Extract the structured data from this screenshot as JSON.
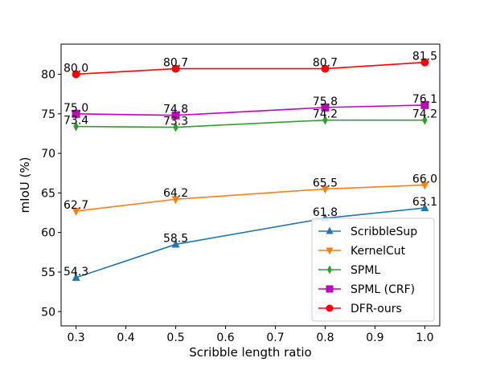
{
  "chart_data": {
    "type": "line",
    "title": "",
    "xlabel": "Scribble length ratio",
    "ylabel": "mIoU (%)",
    "x": [
      0.3,
      0.5,
      0.8,
      1.0
    ],
    "xlim": [
      0.27,
      1.03
    ],
    "ylim": [
      48.2,
      83.8
    ],
    "xticks": [
      "0.3",
      "0.4",
      "0.5",
      "0.6",
      "0.7",
      "0.8",
      "0.9",
      "1.0"
    ],
    "yticks": [
      "50",
      "55",
      "60",
      "65",
      "70",
      "75",
      "80"
    ],
    "grid": false,
    "legend_position": "lower-right",
    "series": [
      {
        "name": "ScribbleSup",
        "color": "#1f77b4",
        "marker": "triangle-up",
        "values": [
          54.3,
          58.5,
          61.8,
          63.1
        ],
        "labels": [
          "54.3",
          "58.5",
          "61.8",
          "63.1"
        ]
      },
      {
        "name": "KernelCut",
        "color": "#ff7f0e",
        "marker": "triangle-down",
        "values": [
          62.7,
          64.2,
          65.5,
          66.0
        ],
        "labels": [
          "62.7",
          "64.2",
          "65.5",
          "66.0"
        ]
      },
      {
        "name": "SPML",
        "color": "#2ca02c",
        "marker": "thin-diamond",
        "values": [
          73.4,
          73.3,
          74.2,
          74.2
        ],
        "labels": [
          "73.4",
          "73.3",
          "74.2",
          "74.2"
        ]
      },
      {
        "name": "SPML (CRF)",
        "color": "#c200c2",
        "marker": "square",
        "values": [
          75.0,
          74.8,
          75.8,
          76.1
        ],
        "labels": [
          "75.0",
          "74.8",
          "75.8",
          "76.1"
        ]
      },
      {
        "name": "DFR-ours",
        "color": "#ff0000",
        "marker": "circle",
        "values": [
          80.0,
          80.7,
          80.7,
          81.5
        ],
        "labels": [
          "80.0",
          "80.7",
          "80.7",
          "81.5"
        ]
      }
    ]
  }
}
